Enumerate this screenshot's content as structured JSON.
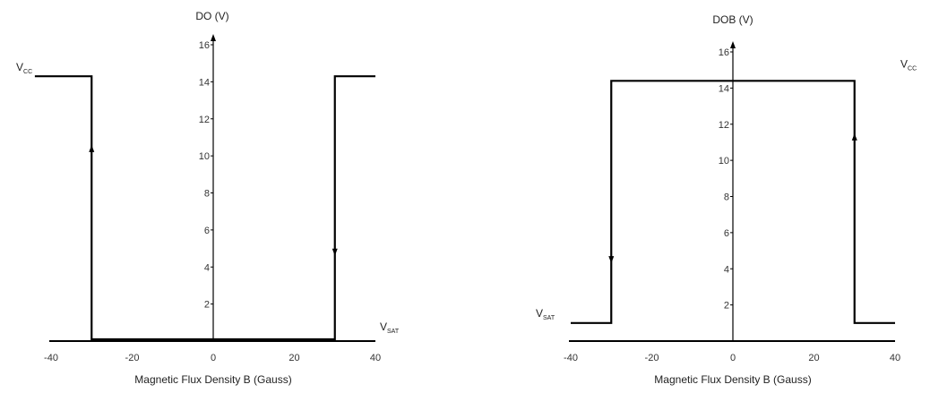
{
  "chart_data": [
    {
      "type": "line",
      "title": "",
      "ylabel": "DO (V)",
      "xlabel": "Magnetic Flux Density B (Gauss)",
      "xlim": [
        -40,
        40
      ],
      "ylim": [
        0,
        16
      ],
      "x_ticks": [
        -40,
        -20,
        0,
        20,
        40
      ],
      "x_tick_labels": [
        "-40",
        "-20",
        "0",
        "20",
        "40"
      ],
      "y_ticks": [
        2,
        4,
        6,
        8,
        10,
        12,
        14,
        16
      ],
      "y_tick_labels": [
        "2",
        "4",
        "6",
        "8",
        "10",
        "12",
        "14",
        "16"
      ],
      "grid": false,
      "high_level": 14.3,
      "low_level": 0.1,
      "high_label": {
        "main": "V",
        "sub": "CC"
      },
      "low_label": {
        "main": "V",
        "sub": "SAT"
      },
      "high_label_side": "left",
      "low_label_side": "right",
      "series": [
        {
          "x": [
            -44,
            -30,
            -30,
            30,
            30,
            40
          ],
          "y": [
            14.3,
            14.3,
            0.1,
            0.1,
            14.3,
            14.3
          ]
        }
      ],
      "arrows": [
        {
          "x": -30,
          "y": 10.4,
          "direction": "up"
        },
        {
          "x": 30,
          "y": 4.8,
          "direction": "down"
        }
      ]
    },
    {
      "type": "line",
      "title": "",
      "ylabel": "DOB (V)",
      "xlabel": "Magnetic Flux Density B (Gauss)",
      "xlim": [
        -40,
        40
      ],
      "ylim": [
        0,
        16
      ],
      "x_ticks": [
        -40,
        -20,
        0,
        20,
        40
      ],
      "x_tick_labels": [
        "-40",
        "-20",
        "0",
        "20",
        "40"
      ],
      "y_ticks": [
        2,
        4,
        6,
        8,
        10,
        12,
        14,
        16
      ],
      "y_tick_labels": [
        "2",
        "4",
        "6",
        "8",
        "10",
        "12",
        "14",
        "16"
      ],
      "grid": false,
      "high_level": 14.4,
      "low_level": 1.0,
      "high_label": {
        "main": "V",
        "sub": "CC"
      },
      "low_label": {
        "main": "V",
        "sub": "SAT"
      },
      "high_label_side": "right",
      "low_label_side": "left",
      "series": [
        {
          "x": [
            -40,
            -30,
            -30,
            30,
            30,
            40
          ],
          "y": [
            1.0,
            1.0,
            14.4,
            14.4,
            1.0,
            1.0
          ]
        }
      ],
      "arrows": [
        {
          "x": -30,
          "y": 4.5,
          "direction": "down"
        },
        {
          "x": 30,
          "y": 11.3,
          "direction": "up"
        }
      ]
    }
  ]
}
